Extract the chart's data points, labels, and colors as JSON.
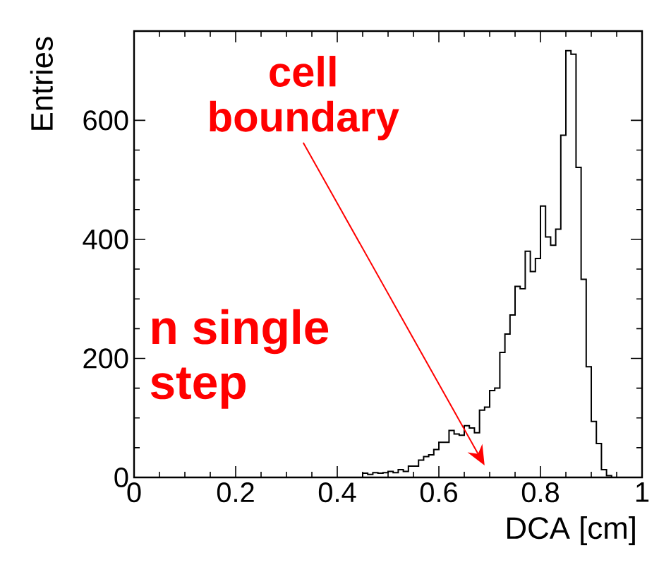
{
  "chart_data": {
    "type": "histogram",
    "xlabel": "DCA [cm]",
    "ylabel": "Entries",
    "color": "#000000",
    "bins": [
      0.45,
      0.46,
      0.47,
      0.48,
      0.49,
      0.5,
      0.51,
      0.52,
      0.53,
      0.54,
      0.55,
      0.56,
      0.57,
      0.58,
      0.59,
      0.6,
      0.61,
      0.62,
      0.63,
      0.64,
      0.65,
      0.66,
      0.67,
      0.68,
      0.69,
      0.7,
      0.71,
      0.72,
      0.73,
      0.74,
      0.75,
      0.76,
      0.77,
      0.78,
      0.79,
      0.8,
      0.81,
      0.82,
      0.83,
      0.84,
      0.85,
      0.86,
      0.87,
      0.88,
      0.89,
      0.9,
      0.91,
      0.92,
      0.93,
      0.94
    ],
    "values": [
      7,
      5,
      8,
      7,
      8,
      10,
      8,
      13,
      10,
      19,
      19,
      29,
      35,
      38,
      47,
      59,
      59,
      79,
      73,
      71,
      87,
      83,
      75,
      113,
      118,
      146,
      150,
      210,
      241,
      273,
      321,
      317,
      380,
      346,
      368,
      456,
      404,
      390,
      417,
      575,
      717,
      711,
      521,
      333,
      186,
      94,
      57,
      13,
      3
    ],
    "xlim": [
      0,
      1
    ],
    "ylim": [
      0,
      750
    ],
    "xticks": [
      0,
      0.2,
      0.4,
      0.6,
      0.8,
      1
    ],
    "yticks": [
      0,
      200,
      400,
      600
    ],
    "annotations": [
      "cell boundary",
      "n single",
      "step"
    ]
  }
}
